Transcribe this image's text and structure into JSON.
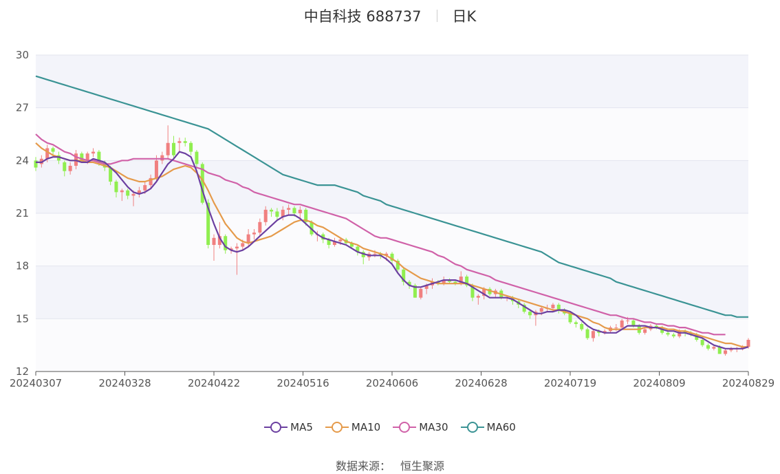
{
  "title": {
    "name": "中自科技 688737",
    "period": "日K"
  },
  "source": {
    "label": "数据来源：",
    "value": "恒生聚源"
  },
  "colors": {
    "up": "#f08080",
    "down": "#90ee50",
    "ma5": "#6b3fa0",
    "ma10": "#e59a4a",
    "ma30": "#d061a8",
    "ma60": "#3a9394"
  },
  "chart_data": {
    "type": "candlestick",
    "ylim": [
      12,
      30
    ],
    "y_ticks": [
      12,
      15,
      18,
      21,
      24,
      27,
      30
    ],
    "x_ticks": [
      "20240307",
      "20240328",
      "20240422",
      "20240516",
      "20240606",
      "20240628",
      "20240719",
      "20240809",
      "20240829"
    ],
    "candles": {
      "open": [
        24.0,
        23.8,
        24.1,
        24.7,
        24.3,
        23.9,
        23.4,
        23.7,
        24.4,
        24.0,
        24.4,
        24.5,
        23.9,
        23.6,
        22.8,
        22.2,
        22.3,
        22.0,
        22.1,
        22.3,
        22.6,
        23.0,
        24.0,
        24.3,
        25.0,
        25.0,
        25.1,
        25.0,
        24.5,
        23.8,
        21.6,
        19.2,
        19.2,
        19.7,
        18.9,
        19.0,
        19.1,
        19.3,
        19.8,
        19.9,
        20.5,
        21.2,
        21.1,
        20.8,
        21.2,
        21.3,
        21.0,
        21.2,
        20.5,
        19.8,
        19.8,
        19.5,
        19.2,
        19.4,
        19.5,
        19.3,
        19.1,
        18.8,
        18.5,
        18.7,
        18.7,
        18.6,
        18.7,
        18.3,
        17.8,
        17.1,
        16.9,
        16.2,
        16.7,
        16.9,
        17.1,
        17.0,
        17.2,
        17.1,
        17.0,
        17.4,
        16.9,
        16.2,
        16.3,
        16.7,
        16.4,
        16.6,
        16.2,
        16.2,
        16.0,
        15.8,
        15.4,
        15.2,
        15.4,
        15.6,
        15.6,
        15.8,
        15.5,
        15.3,
        14.8,
        14.7,
        14.4,
        13.9,
        14.3,
        14.2,
        14.3,
        14.5,
        14.5,
        14.9,
        14.9,
        14.6,
        14.2,
        14.4,
        14.6,
        14.5,
        14.2,
        14.1,
        14.0,
        14.3,
        14.2,
        14.1,
        13.8,
        13.5,
        13.3,
        13.4,
        13.0,
        13.2,
        13.3,
        13.3,
        13.4
      ],
      "close": [
        23.6,
        24.1,
        24.7,
        24.5,
        24.0,
        23.4,
        23.7,
        24.4,
        24.0,
        24.4,
        24.5,
        23.9,
        23.6,
        22.8,
        22.2,
        22.3,
        22.0,
        22.1,
        22.3,
        22.6,
        23.0,
        24.0,
        24.3,
        25.0,
        24.3,
        25.1,
        25.0,
        24.5,
        23.8,
        21.6,
        19.2,
        19.6,
        19.7,
        18.9,
        19.0,
        19.1,
        19.3,
        19.8,
        19.9,
        20.5,
        21.2,
        21.1,
        20.8,
        21.2,
        21.3,
        21.0,
        21.2,
        20.5,
        19.8,
        19.8,
        19.5,
        19.2,
        19.4,
        19.5,
        19.3,
        19.1,
        18.8,
        18.5,
        18.7,
        18.7,
        18.6,
        18.7,
        18.3,
        17.8,
        17.1,
        16.9,
        16.2,
        16.7,
        16.9,
        17.1,
        17.0,
        17.2,
        17.1,
        17.0,
        17.4,
        16.9,
        16.2,
        16.3,
        16.7,
        16.4,
        16.6,
        16.2,
        16.2,
        16.0,
        15.8,
        15.4,
        15.2,
        15.4,
        15.6,
        15.6,
        15.8,
        15.5,
        15.3,
        14.8,
        14.7,
        14.4,
        13.9,
        14.3,
        14.2,
        14.3,
        14.5,
        14.5,
        14.9,
        14.9,
        14.6,
        14.2,
        14.4,
        14.6,
        14.5,
        14.2,
        14.1,
        14.0,
        14.3,
        14.2,
        14.1,
        13.8,
        13.5,
        13.3,
        13.4,
        13.0,
        13.2,
        13.3,
        13.3,
        13.4,
        13.8
      ],
      "high": [
        24.2,
        24.3,
        24.9,
        24.8,
        24.5,
        24.0,
        23.9,
        24.6,
        24.5,
        24.5,
        24.7,
        24.6,
        24.0,
        23.7,
        22.9,
        22.4,
        22.4,
        22.3,
        22.5,
        22.8,
        23.2,
        24.3,
        24.5,
        26.0,
        25.4,
        25.3,
        25.3,
        25.1,
        24.6,
        23.9,
        21.8,
        19.8,
        20.5,
        19.8,
        19.1,
        19.3,
        19.5,
        20.1,
        20.1,
        20.7,
        21.4,
        21.3,
        21.3,
        21.4,
        21.5,
        21.4,
        21.4,
        21.3,
        20.6,
        20.0,
        19.9,
        19.6,
        19.6,
        19.6,
        19.6,
        19.4,
        19.2,
        18.9,
        18.8,
        18.9,
        18.8,
        18.8,
        18.8,
        18.4,
        17.9,
        17.2,
        17.0,
        16.8,
        17.0,
        17.3,
        17.2,
        17.4,
        17.3,
        17.2,
        17.7,
        17.5,
        17.0,
        16.4,
        16.8,
        16.8,
        16.7,
        16.7,
        16.3,
        16.3,
        16.1,
        15.9,
        15.5,
        15.5,
        15.7,
        15.8,
        15.9,
        15.9,
        15.6,
        15.4,
        14.9,
        14.8,
        14.5,
        14.4,
        14.4,
        14.4,
        14.6,
        14.7,
        15.0,
        15.1,
        15.0,
        14.7,
        14.5,
        14.7,
        14.7,
        14.6,
        14.3,
        14.2,
        14.4,
        14.4,
        14.3,
        14.2,
        13.9,
        13.6,
        13.5,
        13.5,
        13.3,
        13.4,
        13.4,
        13.5,
        13.9
      ],
      "low": [
        23.4,
        23.6,
        23.9,
        24.2,
        23.8,
        23.1,
        23.2,
        23.5,
        23.9,
        23.8,
        24.2,
        23.7,
        23.4,
        22.6,
        21.9,
        21.7,
        21.8,
        21.4,
        21.9,
        22.1,
        22.4,
        22.8,
        23.8,
        24.1,
        24.1,
        24.5,
        24.8,
        24.3,
        23.6,
        21.5,
        19.0,
        18.3,
        19.0,
        18.7,
        18.7,
        17.5,
        18.9,
        19.1,
        19.5,
        19.7,
        20.3,
        20.8,
        20.6,
        20.6,
        20.9,
        20.8,
        20.7,
        20.3,
        19.7,
        19.4,
        19.3,
        19.0,
        19.1,
        19.2,
        19.2,
        19.0,
        18.6,
        18.1,
        18.3,
        18.5,
        18.4,
        18.3,
        18.1,
        17.7,
        16.9,
        16.7,
        16.2,
        16.1,
        16.4,
        16.7,
        16.9,
        16.9,
        17.0,
        16.9,
        16.9,
        16.8,
        16.0,
        15.8,
        16.1,
        16.3,
        16.2,
        16.1,
        16.0,
        15.8,
        15.6,
        15.3,
        15.0,
        14.6,
        15.2,
        15.4,
        15.4,
        15.3,
        15.2,
        14.7,
        14.5,
        14.3,
        13.8,
        13.7,
        14.0,
        14.1,
        14.2,
        14.3,
        14.4,
        14.7,
        14.5,
        14.1,
        14.1,
        14.3,
        14.4,
        14.1,
        14.0,
        13.9,
        13.9,
        14.0,
        14.0,
        13.7,
        13.4,
        13.2,
        13.2,
        13.0,
        12.9,
        13.1,
        13.1,
        13.2,
        13.3
      ]
    },
    "ma": {
      "ma5": [
        23.9,
        23.9,
        24.1,
        24.2,
        24.2,
        24.1,
        24.0,
        24.0,
        23.9,
        23.9,
        24.1,
        24.0,
        23.9,
        23.6,
        23.3,
        22.9,
        22.5,
        22.2,
        22.1,
        22.2,
        22.4,
        22.8,
        23.3,
        23.8,
        24.1,
        24.5,
        24.4,
        24.2,
        23.4,
        22.3,
        21.3,
        20.4,
        19.6,
        19.1,
        18.9,
        18.8,
        18.9,
        19.1,
        19.4,
        19.7,
        20.0,
        20.3,
        20.6,
        20.8,
        20.9,
        20.9,
        20.7,
        20.4,
        20.1,
        19.8,
        19.6,
        19.5,
        19.4,
        19.3,
        19.2,
        19.0,
        18.8,
        18.7,
        18.6,
        18.6,
        18.6,
        18.4,
        18.1,
        17.6,
        17.2,
        16.9,
        16.8,
        16.8,
        16.9,
        17.0,
        17.1,
        17.2,
        17.2,
        17.2,
        17.1,
        17.0,
        16.8,
        16.6,
        16.4,
        16.2,
        16.2,
        16.2,
        16.2,
        16.1,
        15.9,
        15.7,
        15.5,
        15.3,
        15.3,
        15.4,
        15.4,
        15.5,
        15.5,
        15.4,
        15.2,
        14.9,
        14.6,
        14.4,
        14.3,
        14.2,
        14.2,
        14.2,
        14.4,
        14.6,
        14.6,
        14.6,
        14.6,
        14.5,
        14.5,
        14.4,
        14.3,
        14.3,
        14.2,
        14.2,
        14.1,
        14.0,
        13.9,
        13.7,
        13.5,
        13.4,
        13.3,
        13.3,
        13.3,
        13.3,
        13.4
      ],
      "ma10": [
        25.0,
        24.7,
        24.5,
        24.3,
        24.2,
        24.1,
        24.0,
        24.0,
        24.0,
        23.9,
        23.9,
        23.8,
        23.7,
        23.6,
        23.4,
        23.2,
        23.0,
        22.9,
        22.8,
        22.8,
        22.9,
        23.0,
        23.1,
        23.3,
        23.5,
        23.6,
        23.7,
        23.6,
        23.3,
        22.9,
        22.3,
        21.6,
        21.0,
        20.4,
        20.0,
        19.6,
        19.4,
        19.3,
        19.4,
        19.5,
        19.6,
        19.7,
        19.9,
        20.1,
        20.3,
        20.5,
        20.6,
        20.6,
        20.5,
        20.3,
        20.2,
        20.0,
        19.8,
        19.6,
        19.4,
        19.3,
        19.2,
        19.0,
        18.9,
        18.8,
        18.7,
        18.6,
        18.4,
        18.2,
        17.9,
        17.7,
        17.5,
        17.3,
        17.2,
        17.1,
        17.0,
        17.0,
        17.0,
        17.0,
        17.0,
        17.0,
        16.9,
        16.8,
        16.7,
        16.6,
        16.5,
        16.4,
        16.3,
        16.2,
        16.1,
        16.0,
        15.9,
        15.8,
        15.7,
        15.6,
        15.5,
        15.5,
        15.4,
        15.3,
        15.2,
        15.1,
        15.0,
        14.8,
        14.7,
        14.5,
        14.4,
        14.4,
        14.4,
        14.4,
        14.4,
        14.4,
        14.5,
        14.5,
        14.5,
        14.5,
        14.4,
        14.4,
        14.3,
        14.3,
        14.2,
        14.1,
        14.0,
        13.9,
        13.8,
        13.7,
        13.6,
        13.6,
        13.5,
        13.4,
        13.4
      ],
      "ma30": [
        25.5,
        25.2,
        25.0,
        24.9,
        24.7,
        24.5,
        24.4,
        24.2,
        24.1,
        24.0,
        24.0,
        23.9,
        23.8,
        23.8,
        23.9,
        24.0,
        24.0,
        24.1,
        24.1,
        24.1,
        24.1,
        24.1,
        24.1,
        24.1,
        24.0,
        23.9,
        23.8,
        23.7,
        23.6,
        23.5,
        23.3,
        23.2,
        23.1,
        22.9,
        22.8,
        22.7,
        22.5,
        22.4,
        22.2,
        22.1,
        22.0,
        21.9,
        21.8,
        21.7,
        21.6,
        21.5,
        21.5,
        21.4,
        21.3,
        21.2,
        21.1,
        21.0,
        20.9,
        20.8,
        20.7,
        20.5,
        20.3,
        20.1,
        19.9,
        19.7,
        19.6,
        19.6,
        19.5,
        19.4,
        19.3,
        19.2,
        19.1,
        19.0,
        18.9,
        18.8,
        18.6,
        18.5,
        18.3,
        18.1,
        18.0,
        17.8,
        17.7,
        17.6,
        17.5,
        17.4,
        17.2,
        17.1,
        17.0,
        16.9,
        16.8,
        16.7,
        16.6,
        16.5,
        16.4,
        16.3,
        16.2,
        16.1,
        16.0,
        15.9,
        15.8,
        15.7,
        15.6,
        15.5,
        15.4,
        15.3,
        15.2,
        15.2,
        15.1,
        15.0,
        15.0,
        14.9,
        14.8,
        14.8,
        14.7,
        14.7,
        14.6,
        14.6,
        14.5,
        14.5,
        14.4,
        14.3,
        14.2,
        14.2,
        14.1,
        14.1,
        14.1
      ],
      "ma60": [
        28.8,
        28.7,
        28.6,
        28.5,
        28.4,
        28.3,
        28.2,
        28.1,
        28.0,
        27.9,
        27.8,
        27.7,
        27.6,
        27.5,
        27.4,
        27.3,
        27.2,
        27.1,
        27.0,
        26.9,
        26.8,
        26.7,
        26.6,
        26.5,
        26.4,
        26.3,
        26.2,
        26.1,
        26.0,
        25.9,
        25.8,
        25.6,
        25.4,
        25.2,
        25.0,
        24.8,
        24.6,
        24.4,
        24.2,
        24.0,
        23.8,
        23.6,
        23.4,
        23.2,
        23.1,
        23.0,
        22.9,
        22.8,
        22.7,
        22.6,
        22.6,
        22.6,
        22.6,
        22.5,
        22.4,
        22.3,
        22.2,
        22.0,
        21.9,
        21.8,
        21.7,
        21.5,
        21.4,
        21.3,
        21.2,
        21.1,
        21.0,
        20.9,
        20.8,
        20.7,
        20.6,
        20.5,
        20.4,
        20.3,
        20.2,
        20.1,
        20.0,
        19.9,
        19.8,
        19.7,
        19.6,
        19.5,
        19.4,
        19.3,
        19.2,
        19.1,
        19.0,
        18.9,
        18.8,
        18.6,
        18.4,
        18.2,
        18.1,
        18.0,
        17.9,
        17.8,
        17.7,
        17.6,
        17.5,
        17.4,
        17.3,
        17.1,
        17.0,
        16.9,
        16.8,
        16.7,
        16.6,
        16.5,
        16.4,
        16.3,
        16.2,
        16.1,
        16.0,
        15.9,
        15.8,
        15.7,
        15.6,
        15.5,
        15.4,
        15.3,
        15.2,
        15.2,
        15.1,
        15.1,
        15.1
      ]
    },
    "legend": [
      "MA5",
      "MA10",
      "MA30",
      "MA60"
    ],
    "legend_placement": "bottom-center",
    "grid": true
  }
}
